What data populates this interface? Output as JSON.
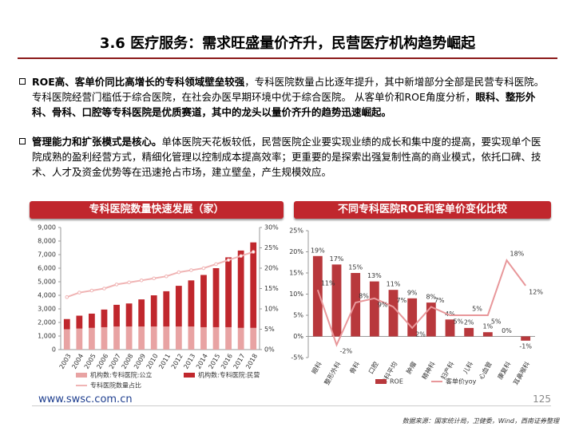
{
  "title": "3.6 医疗服务：需求旺盛量价齐升，民营医疗机构趋势崛起",
  "bullets": [
    {
      "segments": [
        {
          "text": "ROE高、客单价同比高增长的专科领域壁垒较强",
          "bold": true
        },
        {
          "text": "，专科医院数量占比逐年提升，其中新增部分全部是民营专科医院。专科医院经营门槛低于综合医院，在社会办医早期环境中优于综合医院。  从客单价和ROE角度分析，",
          "bold": false
        },
        {
          "text": "眼科、整形外科、骨科、口腔等专科医院是优质赛道，其中的龙头以量价齐升的趋势迅速崛起。",
          "bold": true
        }
      ]
    },
    {
      "segments": [
        {
          "text": "管理能力和扩张模式是核心。",
          "bold": true
        },
        {
          "text": "单体医院天花板较低，民营医院企业要实现业绩的成长和集中度的提高，要实现单个医院成熟的盈利经营方式，精细化管理以控制成本提高效率；更重要的是探索出强复制性高的商业模式，依托口碑、技术、人才及资金优势等在迅速抢占市场，建立壁垒，产生规模效应。",
          "bold": false
        }
      ]
    }
  ],
  "chart_data": [
    {
      "type": "bar",
      "stacked": true,
      "title": "专科医院数量快速发展（家）",
      "categories": [
        "2003",
        "2004",
        "2005",
        "2006",
        "2007",
        "2008",
        "2009",
        "2010",
        "2011",
        "2012",
        "2013",
        "2014",
        "2015",
        "2016",
        "2017",
        "2018"
      ],
      "series": [
        {
          "name": "机构数:专科医院:公立",
          "color": "#e8a3a3",
          "values": [
            1500,
            1550,
            1600,
            1650,
            1700,
            1700,
            1700,
            1700,
            1700,
            1700,
            1700,
            1650,
            1650,
            1650,
            1600,
            1600
          ]
        },
        {
          "name": "机构数:专科医院:民营",
          "color": "#c0272d",
          "values": [
            750,
            950,
            1050,
            1300,
            1600,
            1700,
            2000,
            2300,
            2600,
            3000,
            3400,
            3850,
            4350,
            5150,
            5700,
            6300
          ]
        },
        {
          "name": "专科医院数量占比",
          "type": "line",
          "axis": "y2",
          "color": "#f0b4b4",
          "values": [
            12.9,
            14,
            14.5,
            15,
            16,
            16.5,
            17,
            17.5,
            18,
            19,
            19.5,
            20,
            21,
            22,
            23,
            24
          ]
        }
      ],
      "ylim": [
        0,
        9000
      ],
      "yticks": [
        0,
        {
          "value": 1000,
          "label": "1,000"
        },
        {
          "value": 2000,
          "label": "2,000"
        },
        {
          "value": 3000,
          "label": "3,000"
        },
        {
          "value": 4000,
          "label": "4,000"
        },
        {
          "value": 5000,
          "label": "5,000"
        },
        {
          "value": 6000,
          "label": "6,000"
        },
        {
          "value": 7000,
          "label": "7,000"
        },
        {
          "value": 8000,
          "label": "8,000"
        },
        {
          "value": 9000,
          "label": "9,000"
        }
      ],
      "y2lim": [
        0,
        30
      ],
      "y2ticks": [
        {
          "value": 0,
          "label": "0%"
        },
        {
          "value": 5,
          "label": "5%"
        },
        {
          "value": 10,
          "label": "10%"
        },
        {
          "value": 15,
          "label": "15%"
        },
        {
          "value": 20,
          "label": "20%"
        },
        {
          "value": 25,
          "label": "25%"
        },
        {
          "value": 30,
          "label": "30%"
        }
      ]
    },
    {
      "type": "bar",
      "stacked": false,
      "title": "不同专科医院ROE和客单价变化比较",
      "categories": [
        "眼科",
        "整形外科",
        "骨科",
        "口腔",
        "专科平均",
        "肿瘤",
        "精神科",
        "妇产科",
        "儿科",
        "心血管",
        "康复科",
        "耳鼻喉科"
      ],
      "series": [
        {
          "name": "ROE",
          "color": "#b8383c",
          "values": [
            19,
            17,
            15,
            13,
            11,
            9,
            8,
            4,
            2,
            1,
            0,
            -1
          ],
          "value_labels": [
            "19%",
            "17%",
            "15%",
            "13%",
            "11%",
            "9%",
            "8%",
            "4%",
            "2%",
            "1%",
            "0%",
            "-1%"
          ]
        },
        {
          "name": "客单价yoy",
          "type": "line",
          "color": "#e8979a",
          "values": [
            11,
            -2,
            8,
            9,
            7,
            2,
            7,
            5,
            5,
            5,
            18,
            12
          ],
          "value_labels": [
            "11%",
            "-2%",
            "8%",
            "9%",
            "7%",
            "2%",
            "7%",
            "5%",
            "5%",
            "5%",
            "18%",
            "12%"
          ]
        }
      ],
      "ylim": [
        -5,
        25
      ],
      "yticks": [
        {
          "value": -5,
          "label": "-5%"
        },
        {
          "value": 0,
          "label": "0%"
        },
        {
          "value": 5,
          "label": "5%"
        },
        {
          "value": 10,
          "label": "10%"
        },
        {
          "value": 15,
          "label": "15%"
        },
        {
          "value": 20,
          "label": "20%"
        },
        {
          "value": 25,
          "label": "25%"
        }
      ]
    }
  ],
  "footer": {
    "url": "www.swsc.com.cn",
    "page": "125",
    "source": "数据来源：国家统计局，卫健委，Wind，西南证券整理"
  }
}
